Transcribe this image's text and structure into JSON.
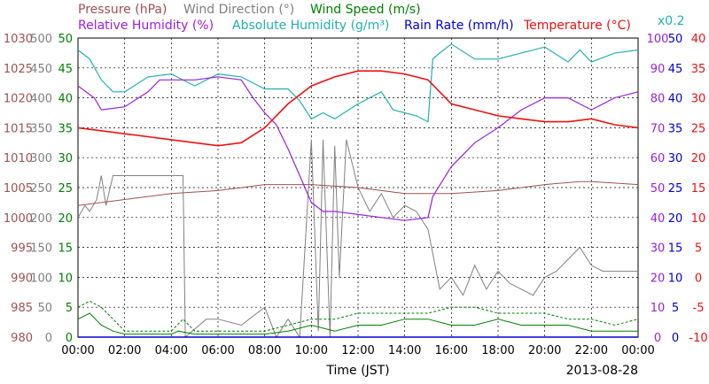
{
  "chart_data": {
    "type": "line",
    "date": "2013-08-28",
    "xlabel": "Time (JST)",
    "x_ticks": [
      "00:00",
      "02:00",
      "04:00",
      "06:00",
      "08:00",
      "10:00",
      "12:00",
      "14:00",
      "16:00",
      "18:00",
      "20:00",
      "22:00",
      "00:00"
    ],
    "legend": [
      {
        "name": "Pressure",
        "unit": "(hPa)",
        "color": "#a05050"
      },
      {
        "name": "Wind Direction",
        "unit": "(°)",
        "color": "#808080"
      },
      {
        "name": "Wind Speed",
        "unit": "(m/s)",
        "color": "#008000"
      },
      {
        "name": "Relative Humidity",
        "unit": "(%)",
        "color": "#9a20e0"
      },
      {
        "name": "Absolute Humidity",
        "unit": "(g/m³)",
        "color": "#20b0b0"
      },
      {
        "name": "Rain Rate",
        "unit": "(mm/h)",
        "color": "#0000d0"
      },
      {
        "name": "Temperature",
        "unit": "(°C)",
        "color": "#f01010"
      }
    ],
    "legend_note": "x0.2",
    "axes": {
      "pressure": {
        "ticks": [
          "1030",
          "1025",
          "1020",
          "1015",
          "1010",
          "1005",
          "1000",
          "995",
          "990",
          "985",
          "980"
        ],
        "range": [
          980,
          1030
        ],
        "color": "#a05050"
      },
      "wind_direction": {
        "ticks": [
          "500",
          "450",
          "400",
          "350",
          "300",
          "250",
          "200",
          "150",
          "100",
          "50",
          "0"
        ],
        "range": [
          0,
          500
        ],
        "color": "#808080"
      },
      "wind_speed": {
        "ticks": [
          "50",
          "45",
          "40",
          "35",
          "30",
          "25",
          "20",
          "15",
          "10",
          "5",
          "0"
        ],
        "range": [
          0,
          50
        ],
        "color": "#008000"
      },
      "relative_humidity": {
        "ticks": [
          "100",
          "90",
          "80",
          "70",
          "60",
          "50",
          "40",
          "30",
          "20",
          "10",
          "0"
        ],
        "range": [
          0,
          100
        ],
        "color": "#9a20e0"
      },
      "rain_rate": {
        "ticks": [
          "50",
          "45",
          "40",
          "35",
          "30",
          "25",
          "20",
          "15",
          "10",
          "5",
          "0"
        ],
        "range": [
          0,
          50
        ],
        "color": "#0000d0"
      },
      "temperature": {
        "ticks": [
          "40",
          "35",
          "30",
          "25",
          "20",
          "15",
          "10",
          "5",
          "0",
          "-5",
          "-10"
        ],
        "range": [
          -10,
          40
        ],
        "color": "#f01010"
      }
    },
    "series": [
      {
        "key": "pressure",
        "hours": [
          0,
          2,
          4,
          6,
          8,
          10,
          12,
          14,
          16,
          18,
          20,
          21.5,
          22,
          24
        ],
        "values": [
          1002,
          1003,
          1004,
          1004.5,
          1005.5,
          1005.5,
          1005,
          1004,
          1004,
          1004.5,
          1005.5,
          1006,
          1006,
          1005.5
        ]
      },
      {
        "key": "temperature",
        "hours": [
          0,
          1,
          2,
          3,
          4,
          5,
          6,
          7,
          8,
          9,
          10,
          11,
          12,
          13,
          14,
          15,
          16,
          17,
          18,
          19,
          20,
          21,
          22,
          23,
          24
        ],
        "values": [
          25,
          24.5,
          24,
          23.5,
          23,
          22.5,
          22,
          22.5,
          25,
          29,
          32,
          33.5,
          34.5,
          34.5,
          34,
          33,
          29,
          28,
          27,
          26.5,
          26,
          26,
          26.5,
          25.5,
          25
        ]
      },
      {
        "key": "relative_humidity",
        "hours": [
          0,
          0.7,
          1,
          2,
          3,
          3.5,
          4,
          5,
          6,
          7,
          7.5,
          8,
          8.5,
          9,
          9.5,
          10,
          10.5,
          11,
          12,
          13,
          14,
          15,
          15.2,
          16,
          17,
          18,
          19,
          20,
          21,
          22,
          23,
          24
        ],
        "values": [
          84,
          80,
          76,
          77,
          82,
          86,
          86,
          86,
          87,
          86,
          80,
          75,
          71,
          63,
          54,
          45,
          42,
          42,
          41,
          40,
          39,
          40,
          47,
          57,
          65,
          70,
          76,
          80,
          80,
          76,
          80,
          82
        ]
      },
      {
        "key": "absolute_humidity",
        "hours": [
          0,
          0.5,
          1,
          1.5,
          2,
          3,
          4,
          5,
          6,
          7,
          8,
          9,
          9.5,
          10,
          10.5,
          11,
          12,
          13,
          13.5,
          14,
          14.5,
          15,
          15.2,
          15.5,
          16,
          17,
          18,
          19,
          20,
          21,
          21.5,
          22,
          23,
          24
        ],
        "values": [
          19.2,
          18.6,
          17.2,
          16.4,
          16.4,
          17.4,
          17.6,
          16.8,
          17.6,
          17.4,
          16.6,
          16.6,
          15.8,
          14.6,
          15,
          14.6,
          15.6,
          16.4,
          15.2,
          15,
          14.8,
          14.4,
          18.6,
          19,
          19.6,
          18.6,
          18.6,
          19,
          19.4,
          18.4,
          19.2,
          18.4,
          19,
          19.2
        ]
      },
      {
        "key": "wind_speed",
        "hours": [
          0,
          0.5,
          1,
          1.5,
          2,
          3,
          4,
          4.3,
          5,
          6,
          7,
          8,
          9,
          10,
          11,
          12,
          13,
          14,
          15,
          16,
          17,
          18,
          19,
          20,
          21,
          22,
          23,
          24
        ],
        "values": [
          3,
          4,
          2,
          1,
          0.5,
          0.5,
          0.5,
          1,
          0.5,
          0.5,
          0.5,
          0.5,
          1,
          2,
          1,
          2,
          2,
          3,
          3,
          2,
          2,
          3,
          2,
          2,
          2,
          1,
          1,
          1
        ]
      },
      {
        "key": "wind_speed_gust",
        "hours": [
          0,
          0.5,
          1,
          1.5,
          2,
          3,
          4,
          4.5,
          5,
          6,
          7,
          8,
          9,
          10,
          11,
          12,
          13,
          14,
          15,
          16,
          17,
          18,
          19,
          20,
          21,
          22,
          23,
          24
        ],
        "values": [
          5,
          6,
          5,
          3,
          1,
          1,
          1,
          3,
          1,
          1,
          1,
          1,
          2,
          3,
          3,
          4,
          4,
          4,
          4,
          5,
          5,
          4,
          4,
          4,
          3,
          3,
          2,
          3
        ]
      },
      {
        "key": "wind_direction",
        "hours": [
          0,
          0.3,
          0.5,
          0.8,
          1,
          1.2,
          1.5,
          4.5,
          4.6,
          5.5,
          6,
          7,
          8,
          8.5,
          9,
          9.5,
          10,
          10.3,
          10.5,
          10.8,
          11,
          11.2,
          11.5,
          12,
          12.5,
          13,
          13.5,
          14,
          14.5,
          15,
          15.3,
          15.5,
          16,
          16.5,
          17,
          17.5,
          18,
          18.5,
          19,
          19.5,
          20,
          20.5,
          21,
          21.5,
          22,
          22.5,
          23,
          24
        ],
        "values": [
          200,
          220,
          210,
          230,
          270,
          220,
          270,
          270,
          0,
          30,
          30,
          20,
          50,
          0,
          30,
          0,
          330,
          10,
          330,
          0,
          320,
          100,
          330,
          250,
          210,
          240,
          200,
          220,
          210,
          180,
          120,
          80,
          100,
          70,
          120,
          80,
          110,
          90,
          80,
          70,
          100,
          110,
          130,
          150,
          120,
          110,
          110,
          110
        ]
      },
      {
        "key": "rain_rate",
        "hours": [
          0,
          24
        ],
        "values": [
          0,
          0
        ]
      }
    ]
  }
}
